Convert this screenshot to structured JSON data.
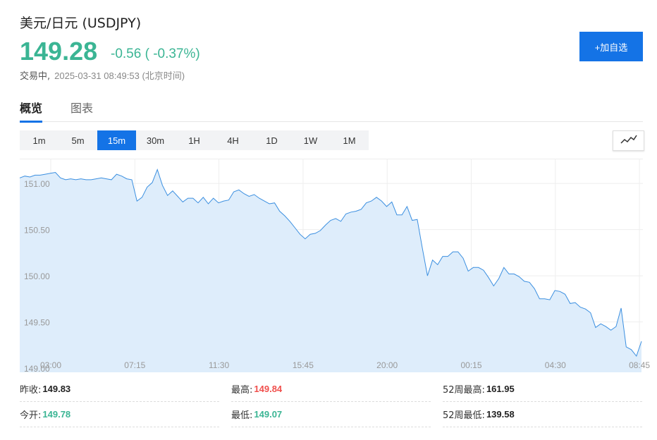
{
  "header": {
    "title": "美元/日元  (USDJPY)",
    "price": "149.28",
    "change": "-0.56 ( -0.37%)",
    "status": "交易中,",
    "timestamp": "2025-03-31 08:49:53 (北京时间)",
    "add_button": "+加自选",
    "colors": {
      "up_down_green": "#3bb594",
      "accent": "#1473e6",
      "red": "#f0504d"
    }
  },
  "tabs": [
    {
      "label": "概览",
      "active": true
    },
    {
      "label": "图表",
      "active": false
    }
  ],
  "intervals": [
    {
      "label": "1m"
    },
    {
      "label": "5m"
    },
    {
      "label": "15m",
      "active": true
    },
    {
      "label": "30m"
    },
    {
      "label": "1H"
    },
    {
      "label": "4H"
    },
    {
      "label": "1D"
    },
    {
      "label": "1W"
    },
    {
      "label": "1M"
    }
  ],
  "chart_type_icon": "line-chart-icon",
  "chart_data": {
    "type": "area",
    "ylim": [
      149.0,
      151.2
    ],
    "y_ticks": [
      "151.00",
      "150.50",
      "150.00",
      "149.50",
      "149.00"
    ],
    "x_ticks": [
      "03:00",
      "07:15",
      "11:30",
      "15:45",
      "20:00",
      "00:15",
      "04:30",
      "08:45"
    ],
    "grid": true,
    "series": [
      {
        "values": [
          151.06,
          151.08,
          151.07,
          151.09,
          151.09,
          151.1,
          151.11,
          151.12,
          151.06,
          151.04,
          151.05,
          151.04,
          151.05,
          151.04,
          151.04,
          151.05,
          151.06,
          151.05,
          151.04,
          151.1,
          151.08,
          151.05,
          151.04,
          150.81,
          150.85,
          150.96,
          151.01,
          151.15,
          150.98,
          150.87,
          150.92,
          150.86,
          150.8,
          150.84,
          150.84,
          150.79,
          150.85,
          150.78,
          150.84,
          150.79,
          150.81,
          150.82,
          150.91,
          150.93,
          150.89,
          150.86,
          150.88,
          150.84,
          150.81,
          150.78,
          150.79,
          150.7,
          150.65,
          150.59,
          150.52,
          150.45,
          150.4,
          150.45,
          150.46,
          150.49,
          150.55,
          150.6,
          150.62,
          150.59,
          150.67,
          150.69,
          150.7,
          150.72,
          150.79,
          150.81,
          150.85,
          150.81,
          150.75,
          150.8,
          150.66,
          150.66,
          150.75,
          150.6,
          150.61,
          150.3,
          150.0,
          150.17,
          150.12,
          150.21,
          150.21,
          150.26,
          150.26,
          150.19,
          150.05,
          150.09,
          150.09,
          150.06,
          149.98,
          149.89,
          149.97,
          150.09,
          150.02,
          150.02,
          149.99,
          149.94,
          149.93,
          149.86,
          149.75,
          149.75,
          149.74,
          149.84,
          149.83,
          149.8,
          149.7,
          149.71,
          149.66,
          149.64,
          149.6,
          149.44,
          149.48,
          149.45,
          149.41,
          149.45,
          149.65,
          149.23,
          149.2,
          149.13,
          149.29
        ]
      }
    ]
  },
  "stats": [
    [
      {
        "label": "昨收:",
        "value": "149.83",
        "color": "#222222"
      },
      {
        "label": "最高:",
        "value": "149.84",
        "color": "#f0504d"
      },
      {
        "label": "52周最高:",
        "value": "161.95",
        "color": "#222222"
      }
    ],
    [
      {
        "label": "今开:",
        "value": "149.78",
        "color": "#3bb594"
      },
      {
        "label": "最低:",
        "value": "149.07",
        "color": "#3bb594"
      },
      {
        "label": "52周最低:",
        "value": "139.58",
        "color": "#222222"
      }
    ]
  ]
}
